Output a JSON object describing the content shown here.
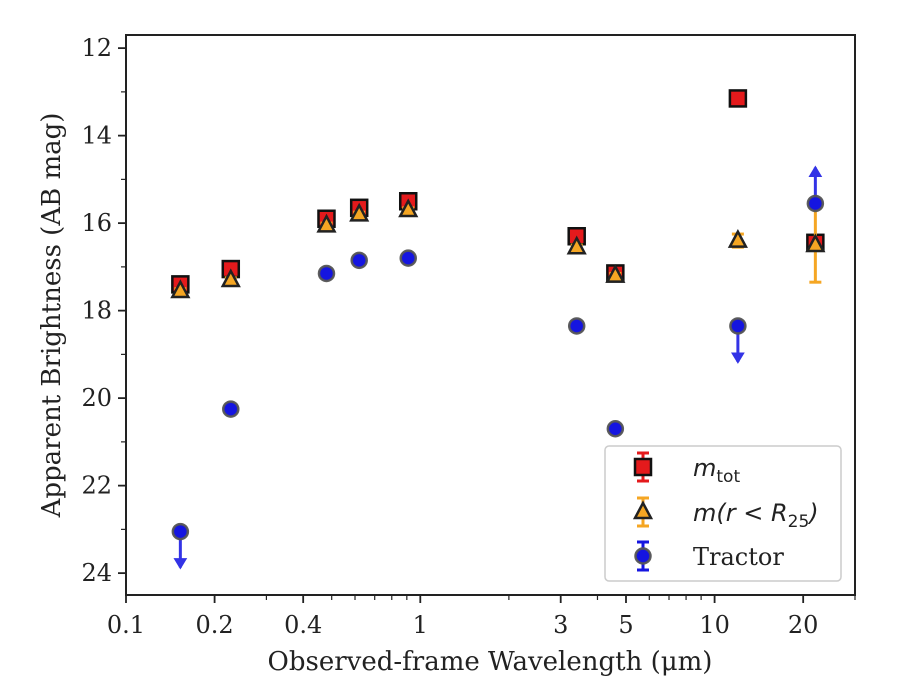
{
  "chart_data": {
    "type": "scatter",
    "xlabel": "Observed-frame Wavelength (μm)",
    "ylabel": "Apparent Brightness (AB mag)",
    "xscale": "log",
    "xlim": [
      0.1,
      30
    ],
    "ylim": [
      24.5,
      11.7
    ],
    "y_inverted": true,
    "xticks": [
      0.1,
      0.2,
      0.4,
      1,
      3,
      5,
      10,
      20
    ],
    "xtick_labels": [
      "0.1",
      "0.2",
      "0.4",
      "1",
      "3",
      "5",
      "10",
      "20"
    ],
    "yticks": [
      12,
      14,
      16,
      18,
      20,
      22,
      24
    ],
    "ytick_labels": [
      "12",
      "14",
      "16",
      "18",
      "20",
      "22",
      "24"
    ],
    "grid": false,
    "legend_position": "lower-right",
    "series": [
      {
        "name": "m_tot",
        "label_main": "m",
        "label_sub": "tot",
        "marker": "square",
        "color": "#e41a1c",
        "points": [
          {
            "x": 0.153,
            "y": 17.4,
            "err": 0.05
          },
          {
            "x": 0.227,
            "y": 17.05,
            "err": 0.05
          },
          {
            "x": 0.48,
            "y": 15.9,
            "err": 0.05
          },
          {
            "x": 0.62,
            "y": 15.65,
            "err": 0.05
          },
          {
            "x": 0.91,
            "y": 15.5,
            "err": 0.05
          },
          {
            "x": 3.4,
            "y": 16.3,
            "err": 0.05
          },
          {
            "x": 4.6,
            "y": 17.15,
            "err": 0.05
          },
          {
            "x": 12.0,
            "y": 13.15,
            "err": 0.05
          },
          {
            "x": 22.0,
            "y": 16.45,
            "err": 0.05
          }
        ]
      },
      {
        "name": "m(r < R25)",
        "label_main": "m(r < R",
        "label_sub": "25",
        "label_end": ")",
        "marker": "triangle",
        "color": "#f5a623",
        "points": [
          {
            "x": 0.153,
            "y": 17.55,
            "err": 0.05
          },
          {
            "x": 0.227,
            "y": 17.3,
            "err": 0.05
          },
          {
            "x": 0.48,
            "y": 16.05,
            "err": 0.05
          },
          {
            "x": 0.62,
            "y": 15.8,
            "err": 0.05
          },
          {
            "x": 0.91,
            "y": 15.7,
            "err": 0.05
          },
          {
            "x": 3.4,
            "y": 16.55,
            "err": 0.05
          },
          {
            "x": 4.6,
            "y": 17.2,
            "err": 0.05
          },
          {
            "x": 12.0,
            "y": 16.4,
            "err": 0.15
          },
          {
            "x": 22.0,
            "y": 16.5,
            "err": 0.85
          }
        ]
      },
      {
        "name": "Tractor",
        "marker": "circle",
        "color": "#1515e0",
        "points": [
          {
            "x": 0.153,
            "y": 23.05,
            "upper_limit": true
          },
          {
            "x": 0.227,
            "y": 20.25,
            "err": 0.05
          },
          {
            "x": 0.48,
            "y": 17.15,
            "err": 0.05
          },
          {
            "x": 0.62,
            "y": 16.85,
            "err": 0.05
          },
          {
            "x": 0.91,
            "y": 16.8,
            "err": 0.05
          },
          {
            "x": 3.4,
            "y": 18.35,
            "err": 0.05
          },
          {
            "x": 4.6,
            "y": 20.7,
            "err": 0.05
          },
          {
            "x": 12.0,
            "y": 18.35,
            "upper_limit": true
          },
          {
            "x": 22.0,
            "y": 15.55,
            "err": 0.05,
            "lower_limit": true
          }
        ]
      }
    ]
  },
  "legend": {
    "entries": [
      {
        "main": "m",
        "sub": "tot",
        "end": ""
      },
      {
        "main": "m(r < R",
        "sub": "25",
        "end": ")"
      },
      {
        "main": "Tractor",
        "sub": "",
        "end": ""
      }
    ]
  }
}
